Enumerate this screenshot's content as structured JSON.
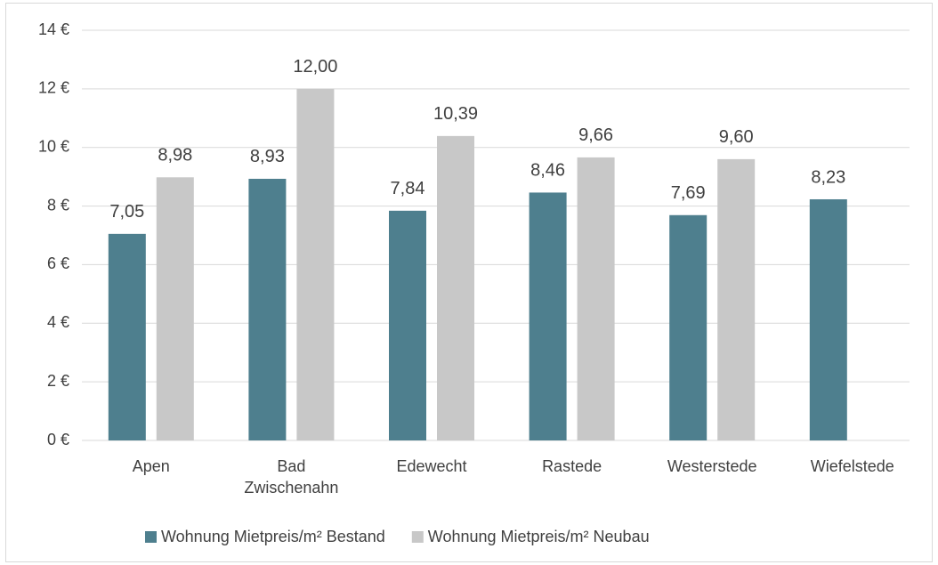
{
  "chart_data": {
    "type": "bar",
    "categories": [
      "Apen",
      "Bad Zwischenahn",
      "Edewecht",
      "Rastede",
      "Westerstede",
      "Wiefelstede"
    ],
    "series": [
      {
        "name": "Wohnung Mietpreis/m² Bestand",
        "color": "#4e7f8e",
        "values": [
          7.05,
          8.93,
          7.84,
          8.46,
          7.69,
          8.23
        ],
        "value_labels": [
          "7,05",
          "8,93",
          "7,84",
          "8,46",
          "7,69",
          "8,23"
        ]
      },
      {
        "name": "Wohnung Mietpreis/m² Neubau",
        "color": "#c8c8c8",
        "values": [
          8.98,
          12.0,
          10.39,
          9.66,
          9.6,
          null
        ],
        "value_labels": [
          "8,98",
          "12,00",
          "10,39",
          "9,66",
          "9,60",
          null
        ]
      }
    ],
    "ylim": [
      0,
      14
    ],
    "yticks": [
      {
        "value": 0,
        "label": "0 €"
      },
      {
        "value": 2,
        "label": "2 €"
      },
      {
        "value": 4,
        "label": "4 €"
      },
      {
        "value": 6,
        "label": "6 €"
      },
      {
        "value": 8,
        "label": "8 €"
      },
      {
        "value": 10,
        "label": "10 €"
      },
      {
        "value": 12,
        "label": "12 €"
      },
      {
        "value": 14,
        "label": "14 €"
      }
    ],
    "grid": true,
    "legend": "bottom"
  }
}
